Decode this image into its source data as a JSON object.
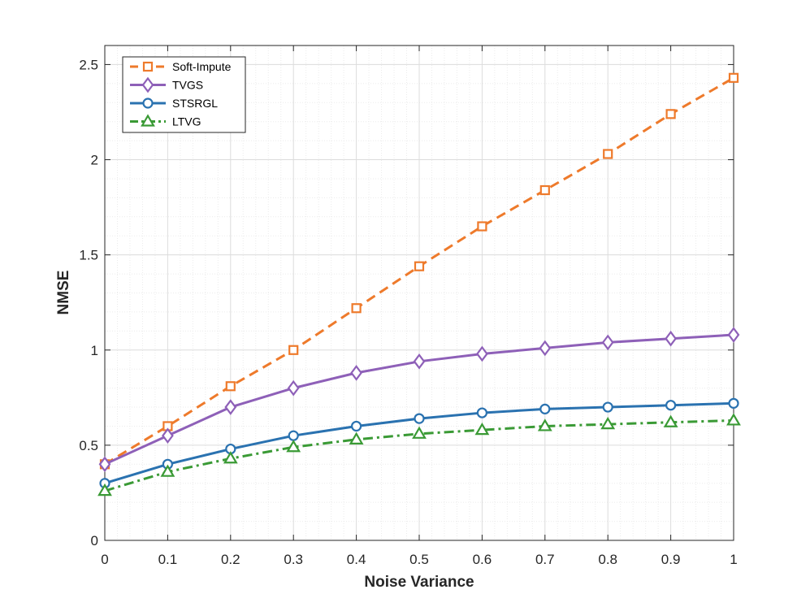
{
  "chart_data": {
    "type": "line",
    "title": "",
    "xlabel": "Noise Variance",
    "ylabel": "NMSE",
    "xlim": [
      0,
      1
    ],
    "ylim": [
      0,
      2.6
    ],
    "x": [
      0,
      0.1,
      0.2,
      0.3,
      0.4,
      0.5,
      0.6,
      0.7,
      0.8,
      0.9,
      1
    ],
    "xticks": [
      "0",
      "0.1",
      "0.2",
      "0.3",
      "0.4",
      "0.5",
      "0.6",
      "0.7",
      "0.8",
      "0.9",
      "1"
    ],
    "xtick_values": [
      0,
      0.1,
      0.2,
      0.3,
      0.4,
      0.5,
      0.6,
      0.7,
      0.8,
      0.9,
      1
    ],
    "yticks": [
      "0",
      "0.5",
      "1",
      "1.5",
      "2",
      "2.5"
    ],
    "ytick_values": [
      0,
      0.5,
      1,
      1.5,
      2,
      2.5
    ],
    "grid": true,
    "minor_grid": true,
    "legend_location": "top-left",
    "series": [
      {
        "name": "Soft-Impute",
        "color": "#EE7A2B",
        "marker": "square",
        "linestyle": "dashed",
        "values": [
          0.4,
          0.6,
          0.81,
          1.0,
          1.22,
          1.44,
          1.65,
          1.84,
          2.03,
          2.24,
          2.43
        ]
      },
      {
        "name": "TVGS",
        "color": "#8E60B8",
        "marker": "diamond",
        "linestyle": "solid",
        "values": [
          0.4,
          0.55,
          0.7,
          0.8,
          0.88,
          0.94,
          0.98,
          1.01,
          1.04,
          1.06,
          1.08
        ]
      },
      {
        "name": "STSRGL",
        "color": "#2A72B0",
        "marker": "circle",
        "linestyle": "solid",
        "values": [
          0.3,
          0.4,
          0.48,
          0.55,
          0.6,
          0.64,
          0.67,
          0.69,
          0.7,
          0.71,
          0.72
        ]
      },
      {
        "name": "LTVG",
        "color": "#3A9A35",
        "marker": "triangle",
        "linestyle": "dashdot",
        "values": [
          0.26,
          0.36,
          0.43,
          0.49,
          0.53,
          0.56,
          0.58,
          0.6,
          0.61,
          0.62,
          0.63
        ]
      }
    ]
  }
}
